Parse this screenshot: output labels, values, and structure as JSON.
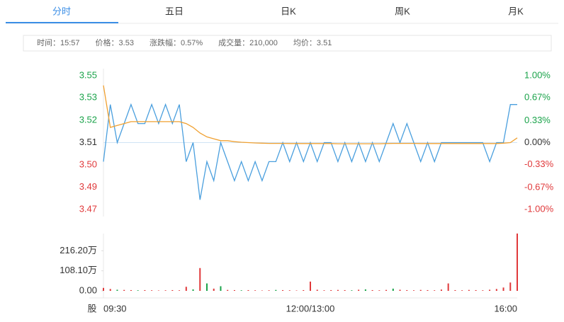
{
  "tabs": [
    {
      "label": "分时",
      "active": true
    },
    {
      "label": "五日"
    },
    {
      "label": "日K"
    },
    {
      "label": "周K"
    },
    {
      "label": "月K"
    }
  ],
  "info": [
    {
      "label": "时间：",
      "value": "15:57"
    },
    {
      "label": "价格：",
      "value": "3.53",
      "color": "#1aa34a"
    },
    {
      "label": "涨跌幅：",
      "value": "0.57%",
      "color": "#1aa34a"
    },
    {
      "label": "成交量：",
      "value": "210,000"
    },
    {
      "label": "均价：",
      "value": "3.51"
    }
  ],
  "chart_data": [
    {
      "type": "line",
      "up_color": "#1aa34a",
      "down_color": "#e0383a",
      "flat_color": "#333333",
      "ylim": [
        3.4749,
        3.5451
      ],
      "yticks": [
        {
          "value": 3.5451,
          "label": "3.55"
        },
        {
          "value": 3.5335,
          "label": "3.53"
        },
        {
          "value": 3.5217,
          "label": "3.52"
        },
        3.51,
        {
          "value": 3.4983,
          "label": "3.50"
        },
        {
          "value": 3.4865,
          "label": "3.49"
        },
        {
          "value": 3.4749,
          "label": "3.47"
        }
      ],
      "y2lim": [
        -1,
        1
      ],
      "y2ticks": [
        {
          "value": 1,
          "label": "1.00%"
        },
        {
          "value": 0.67,
          "label": "0.67%"
        },
        {
          "value": 0.33,
          "label": "0.33%"
        },
        {
          "value": 0,
          "label": "0.00%"
        },
        {
          "value": -0.33,
          "label": "-0.33%"
        },
        {
          "value": -0.67,
          "label": "-0.67%"
        },
        {
          "value": -1,
          "label": "-1.00%"
        }
      ],
      "series": [
        {
          "color": "#4a9fde",
          "values": [
            3.5,
            3.53,
            3.51,
            3.52,
            3.53,
            3.52,
            3.52,
            3.53,
            3.52,
            3.53,
            3.52,
            3.53,
            3.5,
            3.51,
            3.48,
            3.5,
            3.49,
            3.51,
            3.5,
            3.49,
            3.5,
            3.49,
            3.5,
            3.49,
            3.5,
            3.5,
            3.51,
            3.5,
            3.51,
            3.5,
            3.51,
            3.5,
            3.51,
            3.51,
            3.5,
            3.51,
            3.5,
            3.51,
            3.5,
            3.51,
            3.5,
            3.51,
            3.52,
            3.51,
            3.52,
            3.51,
            3.5,
            3.51,
            3.5,
            3.51,
            3.51,
            3.51,
            3.51,
            3.51,
            3.51,
            3.51,
            3.5,
            3.51,
            3.51,
            3.53,
            3.53
          ]
        },
        {
          "color": "#f0a030",
          "values": [
            3.54,
            3.518,
            3.519,
            3.52,
            3.521,
            3.521,
            3.521,
            3.521,
            3.521,
            3.521,
            3.521,
            3.521,
            3.52,
            3.518,
            3.515,
            3.513,
            3.512,
            3.511,
            3.511,
            3.5105,
            3.5102,
            3.51,
            3.5098,
            3.5097,
            3.5096,
            3.5096,
            3.5096,
            3.5095,
            3.5095,
            3.5095,
            3.5095,
            3.5095,
            3.5095,
            3.5095,
            3.5094,
            3.5094,
            3.5094,
            3.5094,
            3.5094,
            3.5094,
            3.5094,
            3.5095,
            3.5096,
            3.5096,
            3.5096,
            3.5096,
            3.5095,
            3.5095,
            3.5095,
            3.5095,
            3.5095,
            3.5095,
            3.5095,
            3.5095,
            3.5095,
            3.5095,
            3.5095,
            3.5095,
            3.5097,
            3.51,
            3.5125
          ]
        }
      ]
    },
    {
      "type": "bar",
      "y_label": "股",
      "ylim": [
        0,
        309
      ],
      "yticks": [
        {
          "value": 216.2,
          "label": "216.20万"
        },
        {
          "value": 108.1,
          "label": "108.10万"
        },
        {
          "value": 0,
          "label": "0.00"
        }
      ],
      "categories": [
        "09:30",
        null,
        null,
        null,
        null,
        null,
        null,
        null,
        null,
        null,
        null,
        null,
        null,
        null,
        null,
        null,
        null,
        null,
        null,
        null,
        null,
        null,
        null,
        null,
        null,
        null,
        null,
        null,
        null,
        null,
        "12:00/13:00",
        null,
        null,
        null,
        null,
        null,
        null,
        null,
        null,
        null,
        null,
        null,
        null,
        null,
        null,
        null,
        null,
        null,
        null,
        null,
        null,
        null,
        null,
        null,
        null,
        null,
        null,
        null,
        null,
        null,
        "16:00"
      ],
      "values": [
        16,
        10,
        6,
        5,
        4,
        3,
        4,
        3,
        2,
        3,
        4,
        3,
        22,
        8,
        123,
        40,
        12,
        25,
        5,
        4,
        3,
        4,
        3,
        2,
        3,
        5,
        4,
        3,
        2,
        4,
        50,
        6,
        3,
        4,
        5,
        4,
        3,
        6,
        8,
        4,
        3,
        5,
        12,
        6,
        4,
        3,
        5,
        4,
        3,
        7,
        40,
        4,
        3,
        5,
        4,
        3,
        6,
        10,
        18,
        45,
        309
      ],
      "colors": [
        "#e0383a",
        "#e0383a",
        "#1aa34a",
        "#e0383a",
        "#e0383a",
        "#1aa34a",
        "#e0383a",
        "#e0383a",
        "#e0383a",
        "#e0383a",
        "#e0383a",
        "#e0383a",
        "#e0383a",
        "#1aa34a",
        "#e0383a",
        "#1aa34a",
        "#e0383a",
        "#1aa34a",
        "#e0383a",
        "#e0383a",
        "#1aa34a",
        "#e0383a",
        "#e0383a",
        "#e0383a",
        "#e0383a",
        "#1aa34a",
        "#e0383a",
        "#e0383a",
        "#e0383a",
        "#e0383a",
        "#e0383a",
        "#e0383a",
        "#e0383a",
        "#e0383a",
        "#e0383a",
        "#e0383a",
        "#1aa34a",
        "#e0383a",
        "#1aa34a",
        "#e0383a",
        "#e0383a",
        "#e0383a",
        "#1aa34a",
        "#e0383a",
        "#e0383a",
        "#e0383a",
        "#e0383a",
        "#e0383a",
        "#e0383a",
        "#e0383a",
        "#e0383a",
        "#e0383a",
        "#e0383a",
        "#e0383a",
        "#e0383a",
        "#e0383a",
        "#e0383a",
        "#e0383a",
        "#e0383a",
        "#e0383a",
        "#e0383a"
      ]
    }
  ]
}
